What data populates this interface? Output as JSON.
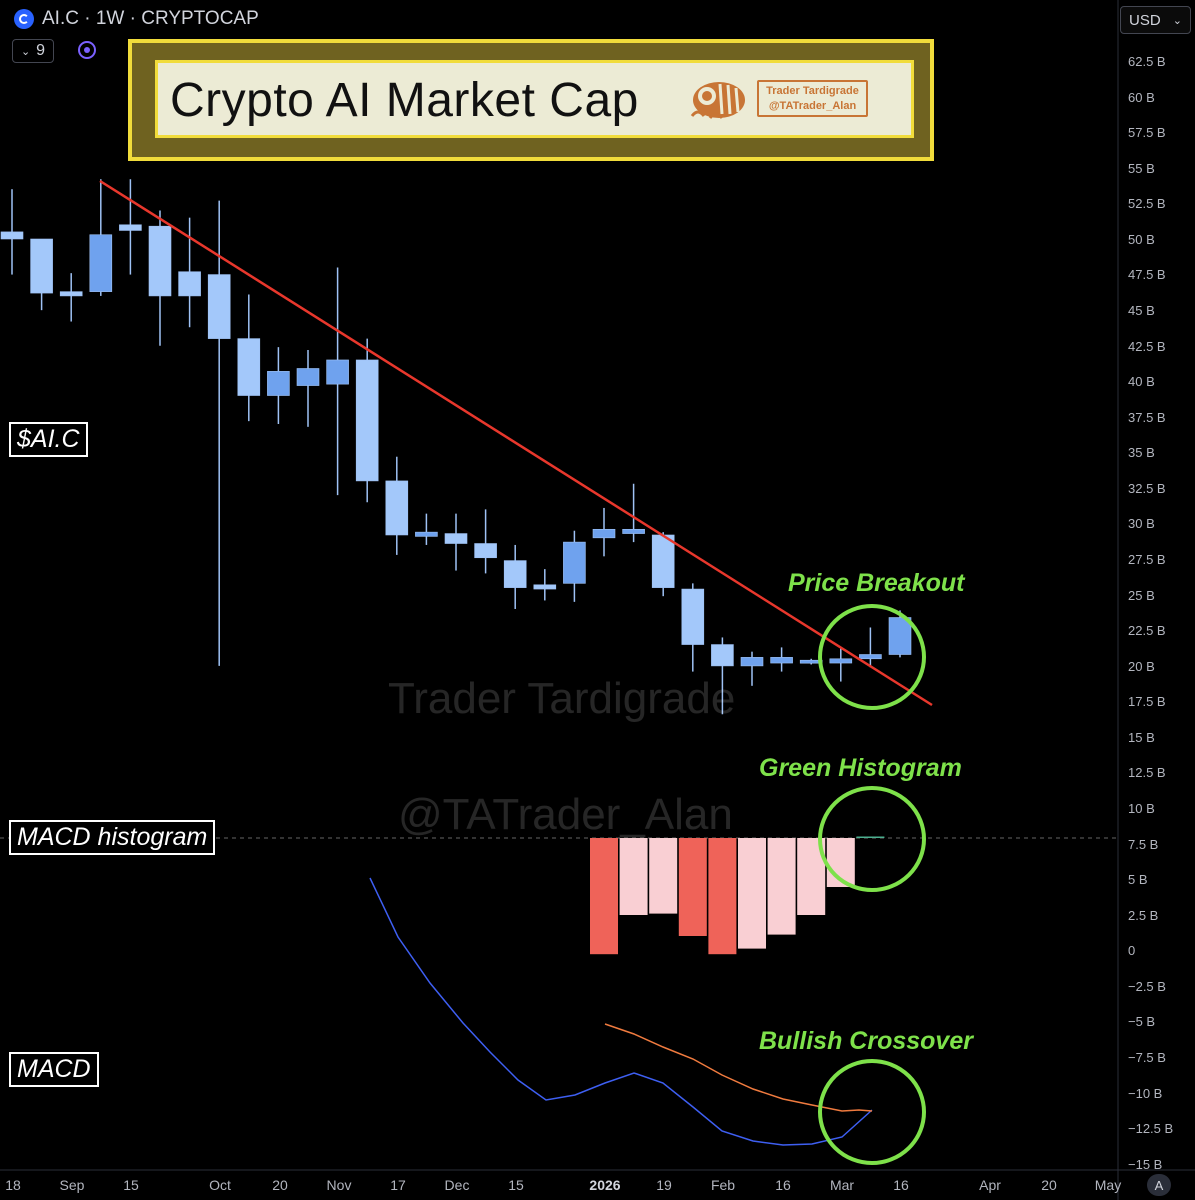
{
  "header": {
    "symbol_line": "AI.C · 1W · CRYPTOCAP",
    "indicator_count": "9",
    "currency": "USD"
  },
  "banner": {
    "title": "Crypto AI Market Cap",
    "brand_line1": "Trader Tardigrade",
    "brand_line2": "@TATrader_Alan"
  },
  "labels": {
    "ticker": "$AI.C",
    "macd_histogram": "MACD histogram",
    "macd": "MACD"
  },
  "annotations": {
    "price_breakout": "Price Breakout",
    "green_histogram": "Green Histogram",
    "bullish_crossover": "Bullish Crossover"
  },
  "watermarks": {
    "line1": "Trader Tardigrade",
    "line2": "@TATrader_Alan"
  },
  "price_axis": {
    "labels": [
      "62.5 B",
      "60 B",
      "57.5 B",
      "55 B",
      "52.5 B",
      "50 B",
      "47.5 B",
      "45 B",
      "42.5 B",
      "40 B",
      "37.5 B",
      "35 B",
      "32.5 B",
      "30 B",
      "27.5 B",
      "25 B",
      "22.5 B",
      "20 B",
      "17.5 B",
      "15 B",
      "12.5 B",
      "10 B",
      "7.5 B",
      "5 B",
      "2.5 B",
      "0",
      "−2.5 B",
      "−5 B",
      "−7.5 B",
      "−10 B",
      "−12.5 B",
      "−15 B"
    ]
  },
  "time_axis": {
    "labels": [
      "18",
      "Sep",
      "15",
      "Oct",
      "20",
      "Nov",
      "17",
      "Dec",
      "15",
      "2026",
      "19",
      "Feb",
      "16",
      "Mar",
      "16",
      "Apr",
      "20",
      "May"
    ],
    "bold": [
      "2026"
    ],
    "auto_button": "A"
  },
  "colors": {
    "candle_fill": "#a3c8fa",
    "candle_up_fill": "#6fa2ee",
    "candle_wick": "#9fc2f5",
    "trendline": "#e8372c",
    "hist_strong_neg": "#ef6359",
    "hist_weak_neg": "#f9cfd3",
    "hist_pos": "#4caf8f",
    "macd_line": "#3e5ff2",
    "signal_line": "#f07b3f",
    "circle": "#7ee14a"
  },
  "chart_data": {
    "type": "candlestick",
    "title": "Crypto AI Market Cap",
    "interval": "1W",
    "units": "USD (billions)",
    "ylim": [
      -15,
      63
    ],
    "candles": [
      {
        "o": 50.5,
        "h": 53.5,
        "l": 47.5,
        "c": 50.0
      },
      {
        "o": 50.0,
        "h": 50.0,
        "l": 45.0,
        "c": 46.2
      },
      {
        "o": 46.3,
        "h": 47.6,
        "l": 44.2,
        "c": 46.0
      },
      {
        "o": 46.3,
        "h": 54.2,
        "l": 46.0,
        "c": 50.3
      },
      {
        "o": 51.0,
        "h": 54.2,
        "l": 47.5,
        "c": 50.6
      },
      {
        "o": 50.9,
        "h": 52.0,
        "l": 42.5,
        "c": 46.0
      },
      {
        "o": 47.7,
        "h": 51.5,
        "l": 43.8,
        "c": 46.0
      },
      {
        "o": 47.5,
        "h": 52.7,
        "l": 20.0,
        "c": 43.0
      },
      {
        "o": 43.0,
        "h": 46.1,
        "l": 37.2,
        "c": 39.0
      },
      {
        "o": 39.0,
        "h": 42.4,
        "l": 37.0,
        "c": 40.7
      },
      {
        "o": 39.7,
        "h": 42.2,
        "l": 36.8,
        "c": 40.9
      },
      {
        "o": 39.8,
        "h": 48.0,
        "l": 32.0,
        "c": 41.5
      },
      {
        "o": 41.5,
        "h": 43.0,
        "l": 31.5,
        "c": 33.0
      },
      {
        "o": 33.0,
        "h": 34.7,
        "l": 27.8,
        "c": 29.2
      },
      {
        "o": 29.1,
        "h": 30.7,
        "l": 28.5,
        "c": 29.4
      },
      {
        "o": 29.3,
        "h": 30.7,
        "l": 26.7,
        "c": 28.6
      },
      {
        "o": 28.6,
        "h": 31.0,
        "l": 26.5,
        "c": 27.6
      },
      {
        "o": 27.4,
        "h": 28.5,
        "l": 24.0,
        "c": 25.5
      },
      {
        "o": 25.7,
        "h": 26.8,
        "l": 24.6,
        "c": 25.4
      },
      {
        "o": 25.8,
        "h": 29.5,
        "l": 24.5,
        "c": 28.7
      },
      {
        "o": 29.0,
        "h": 31.1,
        "l": 27.7,
        "c": 29.6
      },
      {
        "o": 29.3,
        "h": 32.8,
        "l": 28.7,
        "c": 29.6
      },
      {
        "o": 29.2,
        "h": 29.4,
        "l": 24.9,
        "c": 25.5
      },
      {
        "o": 25.4,
        "h": 25.8,
        "l": 19.6,
        "c": 21.5
      },
      {
        "o": 21.5,
        "h": 22.0,
        "l": 16.6,
        "c": 20.0
      },
      {
        "o": 20.0,
        "h": 21.0,
        "l": 18.6,
        "c": 20.6
      },
      {
        "o": 20.2,
        "h": 21.3,
        "l": 19.6,
        "c": 20.6
      },
      {
        "o": 20.3,
        "h": 20.5,
        "l": 20.1,
        "c": 20.4
      },
      {
        "o": 20.2,
        "h": 21.3,
        "l": 18.9,
        "c": 20.5
      },
      {
        "o": 20.5,
        "h": 22.7,
        "l": 19.9,
        "c": 20.8
      },
      {
        "o": 20.8,
        "h": 23.9,
        "l": 20.6,
        "c": 23.4
      }
    ],
    "histogram": [
      -8.3,
      -5.5,
      -5.4,
      -7.0,
      -8.3,
      -7.9,
      -6.9,
      -5.5,
      -3.5,
      0.1
    ],
    "macd_line": [
      -9.2,
      -11.2,
      -12.4,
      -13.1,
      -13.5,
      -14.0,
      -14.5,
      -14.5,
      -13.8,
      -14.5,
      -14.6,
      -15.2,
      -15.7,
      -16.2,
      -16.4,
      -16.4,
      -16.2,
      -15.1
    ],
    "signal_line": [
      -10.6,
      -11.0,
      -11.5,
      -11.9,
      -12.5,
      -13.2,
      -13.9,
      -14.4,
      -14.9,
      -15.1,
      -15.1
    ]
  }
}
